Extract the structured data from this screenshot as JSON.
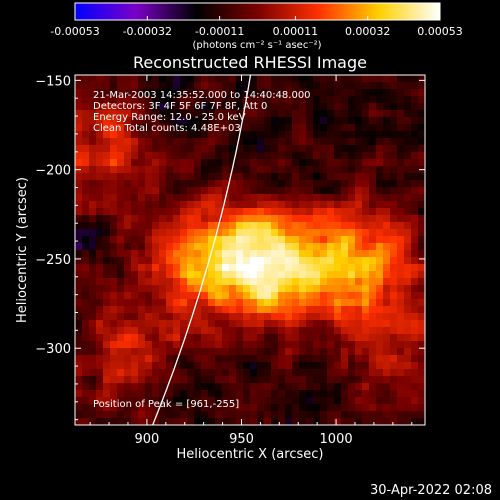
{
  "colorbar": {
    "tick_labels": [
      "-0.00053",
      "-0.00032",
      "-0.00011",
      "0.00011",
      "0.00032",
      "0.00053"
    ],
    "units_label": "(photons cm⁻² s⁻¹ asec⁻²)",
    "range": [
      -0.00053,
      0.00053
    ],
    "colors": [
      "#0000ff",
      "#7a00c8",
      "#000000",
      "#7a0000",
      "#ff3000",
      "#ffd000",
      "#ffffff"
    ]
  },
  "plot": {
    "title": "Reconstructed RHESSI Image",
    "xlabel": "Heliocentric X (arcsec)",
    "ylabel": "Heliocentric Y (arcsec)",
    "xlim": [
      862,
      1047
    ],
    "ylim": [
      -343,
      -147
    ],
    "xticks": [
      900,
      950,
      1000
    ],
    "yticks": [
      -150,
      -200,
      -250,
      -300
    ],
    "info_lines": [
      "21-Mar-2003 14:35:52.000 to 14:40:48.000",
      "Detectors: 3F 4F 5F 6F 7F 8F, Att 0",
      "Energy Range: 12.0 - 25.0 keV",
      "Clean     Total counts: 4.48E+03"
    ],
    "peak_text": "Position of Peak = [961,-255]",
    "limb_color": "#ffffff"
  },
  "footer": {
    "timestamp": "30-Apr-2022 02:08"
  },
  "chart_data": {
    "type": "heatmap",
    "title": "Reconstructed RHESSI Image",
    "xlabel": "Heliocentric X (arcsec)",
    "ylabel": "Heliocentric Y (arcsec)",
    "xlim": [
      862,
      1047
    ],
    "ylim": [
      -343,
      -147
    ],
    "value_range": [
      -0.00053,
      0.00053
    ],
    "sources": [
      {
        "x": 961,
        "y": -255,
        "peak": 0.00053
      },
      {
        "x": 1010,
        "y": -250,
        "peak": 0.00042
      },
      {
        "x": 930,
        "y": -248,
        "peak": 0.0003
      },
      {
        "x": 875,
        "y": -188,
        "peak": 0.00025
      },
      {
        "x": 888,
        "y": -298,
        "peak": 0.0002
      },
      {
        "x": 1030,
        "y": -300,
        "peak": 0.00018
      }
    ]
  }
}
